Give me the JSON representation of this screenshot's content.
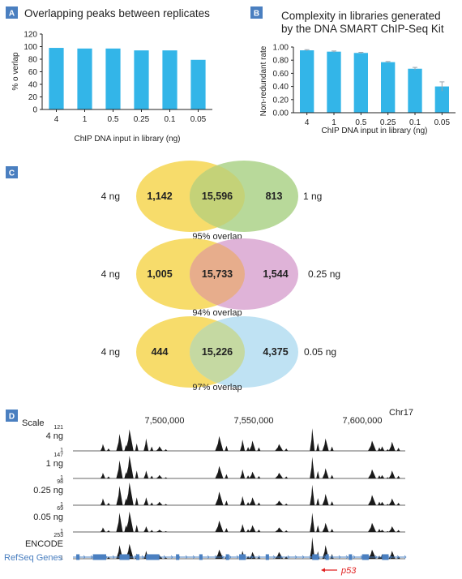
{
  "panel_a": {
    "badge": "A",
    "chart_data": {
      "type": "bar",
      "title": "Overlapping peaks between replicates",
      "xlabel": "ChIP DNA input in library (ng)",
      "ylabel": "% o verlap",
      "categories": [
        "4",
        "1",
        "0.5",
        "0.25",
        "0.1",
        "0.05"
      ],
      "values": [
        98,
        97,
        97,
        94,
        94,
        79
      ],
      "ylim": [
        0,
        120
      ],
      "yticks": [
        "0",
        "20",
        "40",
        "60",
        "80",
        "100",
        "120"
      ],
      "color": "#33b5e8"
    }
  },
  "panel_b": {
    "badge": "B",
    "chart_data": {
      "type": "bar",
      "title_lines": [
        "Complexity in libraries generated",
        "by the DNA SMART ChIP-Seq Kit"
      ],
      "xlabel": "ChIP DNA input in library (ng)",
      "ylabel": "Non-redundant rate",
      "categories": [
        "4",
        "1",
        "0.5",
        "0.25",
        "0.1",
        "0.05"
      ],
      "values": [
        0.95,
        0.93,
        0.91,
        0.77,
        0.67,
        0.4
      ],
      "errors": [
        0.01,
        0.01,
        0.01,
        0.01,
        0.02,
        0.07
      ],
      "ylim": [
        0,
        1.0
      ],
      "yticks": [
        "0.00",
        "0.20",
        "0.40",
        "0.60",
        "0.80",
        "1.00"
      ],
      "color": "#33b5e8"
    }
  },
  "panel_c": {
    "badge": "C",
    "chart_data": [
      {
        "type": "venn",
        "left_label": "4 ng",
        "right_label": "1 ng",
        "left_only": "1,142",
        "overlap": "15,596",
        "right_only": "813",
        "caption": "95% overlap",
        "left_color": "#f7dc6b",
        "right_color": "#b8d99a",
        "overlap_color": "#c4d278"
      },
      {
        "type": "venn",
        "left_label": "4 ng",
        "right_label": "0.25 ng",
        "left_only": "1,005",
        "overlap": "15,733",
        "right_only": "1,544",
        "caption": "94% overlap",
        "left_color": "#f7dc6b",
        "right_color": "#dfb3d8",
        "overlap_color": "#e7ad8c"
      },
      {
        "type": "venn",
        "left_label": "4 ng",
        "right_label": "0.05 ng",
        "left_only": "444",
        "overlap": "15,226",
        "right_only": "4,375",
        "caption": "97% overlap",
        "left_color": "#f7dc6b",
        "right_color": "#bfe2f3",
        "overlap_color": "#c5d9a2"
      }
    ]
  },
  "panel_d": {
    "badge": "D",
    "chromosome": "Chr17",
    "scale_label": "Scale",
    "coordinates": [
      "7,500,000",
      "7,550,000",
      "7,600,000"
    ],
    "tracks": [
      {
        "label": "4 ng",
        "max": "121",
        "min": "1"
      },
      {
        "label": "1 ng",
        "max": "147",
        "min": "1"
      },
      {
        "label": "0.25 ng",
        "max": "98",
        "min": "1"
      },
      {
        "label": "0.05 ng",
        "max": "69",
        "min": "1"
      },
      {
        "label": "ENCODE",
        "max": "253",
        "min": "1"
      }
    ],
    "peak_positions": [
      0.09,
      0.14,
      0.17,
      0.22,
      0.26,
      0.44,
      0.51,
      0.54,
      0.62,
      0.72,
      0.76,
      0.9,
      0.93,
      0.96
    ],
    "refseq_label": "RefSeq Genes",
    "gene_label": "p53",
    "arrow_color": "#e02020",
    "refseq_color": "#4a7fc0"
  }
}
